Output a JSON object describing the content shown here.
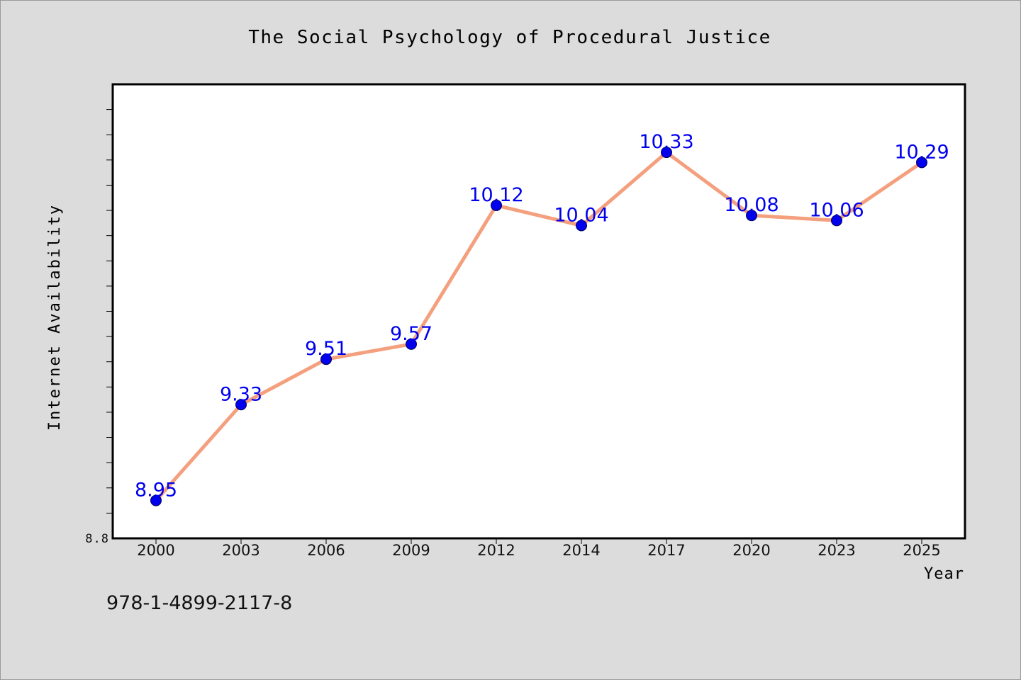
{
  "isbn": "978-1-4899-2117-8",
  "colors": {
    "background": "#dcdcdc",
    "plot_background": "#ffffff",
    "line": "#f4a07e",
    "marker": "#0000ee",
    "data_label": "#0000ee",
    "text": "#111111"
  },
  "chart_data": {
    "type": "line",
    "title": "The Social Psychology of Procedural Justice",
    "xlabel": "Year",
    "ylabel": "Internet Availability",
    "categories": [
      "2000",
      "2003",
      "2006",
      "2009",
      "2012",
      "2014",
      "2017",
      "2020",
      "2023",
      "2025"
    ],
    "series": [
      {
        "values": [
          8.95,
          9.33,
          9.51,
          9.57,
          10.12,
          10.04,
          10.33,
          10.08,
          10.06,
          10.29
        ],
        "data_labels": [
          "8.95",
          "9.33",
          "9.51",
          "9.57",
          "10.12",
          "10.04",
          "10.33",
          "10.08",
          "10.06",
          "10.29"
        ]
      }
    ],
    "ylim": [
      8.8,
      10.6
    ],
    "y_tick_labels": [
      "8.8"
    ],
    "y_minor_tick_step": 0.1,
    "grid": false,
    "legend": "none"
  }
}
